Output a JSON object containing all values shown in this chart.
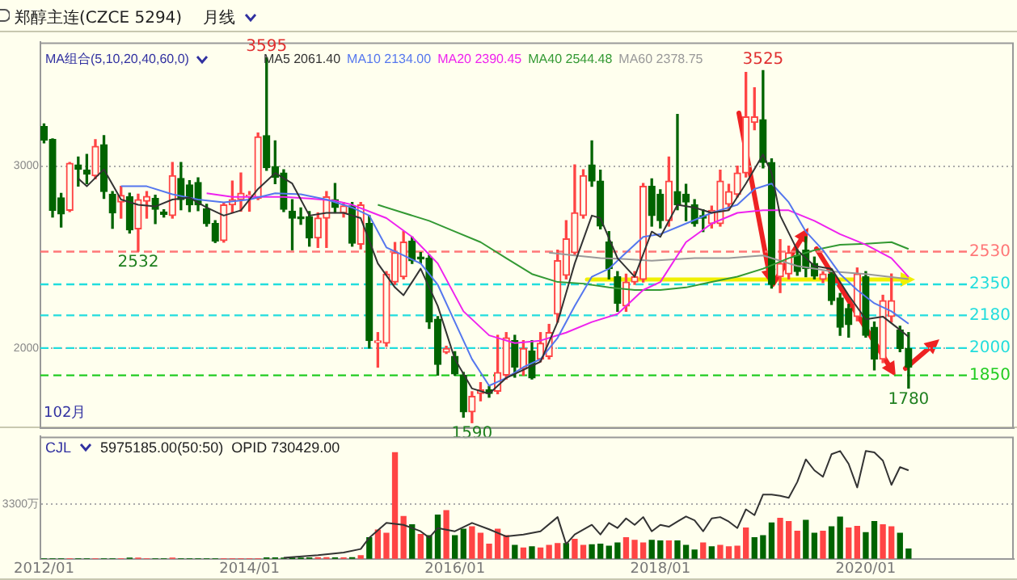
{
  "chart_data": [
    {
      "type": "candlestick",
      "title": "郑醇主连(CZCE 5294)",
      "subtitle": "月线",
      "legend_title": "MA组合(5,10,20,40,60,0)",
      "legend": "top",
      "tick_labels": "y",
      "grid": "y",
      "marker": "none",
      "xlim": [
        "2011-12-19",
        "2021-06-10"
      ],
      "ylim": [
        1560,
        3680
      ],
      "yticks": [
        2000,
        3000
      ],
      "x": [
        "2012-01",
        "2012-02",
        "2012-03",
        "2012-04",
        "2012-05",
        "2012-06",
        "2012-07",
        "2012-08",
        "2012-09",
        "2012-10",
        "2012-11",
        "2012-12",
        "2013-01",
        "2013-02",
        "2013-03",
        "2013-04",
        "2013-05",
        "2013-06",
        "2013-07",
        "2013-08",
        "2013-09",
        "2013-10",
        "2013-11",
        "2013-12",
        "2014-01",
        "2014-02",
        "2014-03",
        "2014-04",
        "2014-05",
        "2014-06",
        "2014-07",
        "2014-08",
        "2014-09",
        "2014-10",
        "2014-11",
        "2014-12",
        "2015-01",
        "2015-02",
        "2015-03",
        "2015-04",
        "2015-05",
        "2015-06",
        "2015-07",
        "2015-08",
        "2015-09",
        "2015-10",
        "2015-11",
        "2015-12",
        "2016-01",
        "2016-02",
        "2016-03",
        "2016-04",
        "2016-05",
        "2016-06",
        "2016-07",
        "2016-08",
        "2016-09",
        "2016-10",
        "2016-11",
        "2016-12",
        "2017-01",
        "2017-02",
        "2017-03",
        "2017-04",
        "2017-05",
        "2017-06",
        "2017-07",
        "2017-08",
        "2017-09",
        "2017-10",
        "2017-11",
        "2017-12",
        "2018-01",
        "2018-02",
        "2018-03",
        "2018-04",
        "2018-05",
        "2018-06",
        "2018-07",
        "2018-08",
        "2018-09",
        "2018-10",
        "2018-11",
        "2018-12",
        "2019-01",
        "2019-02",
        "2019-03",
        "2019-04",
        "2019-05",
        "2019-06",
        "2019-07",
        "2019-08",
        "2019-09",
        "2019-10",
        "2019-11",
        "2019-12",
        "2020-01",
        "2020-02",
        "2020-03",
        "2020-04",
        "2020-05",
        "2020-06"
      ],
      "ohlc": [
        [
          3217,
          3232,
          3128,
          3143
        ],
        [
          3146,
          3150,
          2720,
          2757
        ],
        [
          2825,
          2850,
          2665,
          2737
        ],
        [
          2757,
          3020,
          2750,
          3015
        ],
        [
          3006,
          3050,
          2890,
          2982
        ],
        [
          2977,
          3064,
          2904,
          2956
        ],
        [
          2947,
          3145,
          2930,
          3108
        ],
        [
          3117,
          3167,
          2822,
          2860
        ],
        [
          2845,
          2860,
          2658,
          2743
        ],
        [
          2802,
          2889,
          2714,
          2839
        ],
        [
          2831,
          2851,
          2632,
          2649
        ],
        [
          2655,
          2845,
          2532,
          2816
        ],
        [
          2807,
          2860,
          2714,
          2833
        ],
        [
          2822,
          2840,
          2684,
          2763
        ],
        [
          2748,
          2760,
          2720,
          2735
        ],
        [
          2728,
          3020,
          2714,
          2947
        ],
        [
          2932,
          3020,
          2760,
          2816
        ],
        [
          2897,
          2920,
          2750,
          2787
        ],
        [
          2910,
          2935,
          2755,
          2787
        ],
        [
          2766,
          2790,
          2670,
          2684
        ],
        [
          2684,
          2700,
          2580,
          2588
        ],
        [
          2591,
          2800,
          2582,
          2787
        ],
        [
          2787,
          2918,
          2743,
          2816
        ],
        [
          2816,
          2962,
          2752,
          2851
        ],
        [
          2835,
          2860,
          2752,
          2840
        ],
        [
          2822,
          3182,
          2816,
          3161
        ],
        [
          3167,
          3595,
          2977,
          2991
        ],
        [
          2997,
          3138,
          2904,
          2939
        ],
        [
          2962,
          2980,
          2750,
          2763
        ],
        [
          2752,
          2816,
          2540,
          2714
        ],
        [
          2720,
          2770,
          2680,
          2710
        ],
        [
          2722,
          2750,
          2560,
          2605
        ],
        [
          2605,
          2743,
          2553,
          2714
        ],
        [
          2714,
          2860,
          2553,
          2831
        ],
        [
          2816,
          2904,
          2743,
          2772
        ],
        [
          2743,
          2800,
          2720,
          2781
        ],
        [
          2781,
          2800,
          2560,
          2576
        ],
        [
          2570,
          2800,
          2545,
          2787
        ],
        [
          2684,
          2728,
          2000,
          2041
        ],
        [
          2030,
          2085,
          1895,
          2040
        ],
        [
          2027,
          2420,
          2010,
          2406
        ],
        [
          2363,
          2580,
          2350,
          2524
        ],
        [
          2392,
          2640,
          2380,
          2582
        ],
        [
          2588,
          2610,
          2465,
          2480
        ],
        [
          2500,
          2525,
          2465,
          2490
        ],
        [
          2494,
          2510,
          2108,
          2143
        ],
        [
          2158,
          2173,
          1851,
          1910
        ],
        [
          1977,
          2010,
          1970,
          1998
        ],
        [
          1954,
          1980,
          1851,
          1858
        ],
        [
          1851,
          1866,
          1620,
          1650
        ],
        [
          1650,
          1760,
          1590,
          1735
        ],
        [
          1750,
          1810,
          1710,
          1770
        ],
        [
          1770,
          1790,
          1730,
          1750
        ],
        [
          1763,
          2070,
          1749,
          1866
        ],
        [
          1851,
          2085,
          1830,
          2056
        ],
        [
          2041,
          2070,
          1840,
          1895
        ],
        [
          1886,
          2041,
          1851,
          1998
        ],
        [
          1983,
          2041,
          1830,
          1836
        ],
        [
          1939,
          2085,
          1925,
          2027
        ],
        [
          1954,
          2130,
          1940,
          2085
        ],
        [
          2187,
          2538,
          2143,
          2480
        ],
        [
          2400,
          2700,
          2380,
          2600
        ],
        [
          2524,
          3006,
          2510,
          2743
        ],
        [
          2728,
          2980,
          2714,
          2947
        ],
        [
          3006,
          3138,
          2889,
          2918
        ],
        [
          2918,
          2977,
          2655,
          2670
        ],
        [
          2582,
          2640,
          2380,
          2436
        ],
        [
          2392,
          2420,
          2202,
          2246
        ],
        [
          2231,
          2406,
          2202,
          2363
        ],
        [
          2363,
          2420,
          2350,
          2392
        ],
        [
          2378,
          2904,
          2363,
          2889
        ],
        [
          2889,
          2930,
          2670,
          2728
        ],
        [
          2845,
          2870,
          2660,
          2700
        ],
        [
          2700,
          3050,
          2670,
          2918
        ],
        [
          2860,
          3284,
          2760,
          2787
        ],
        [
          2845,
          2900,
          2700,
          2802
        ],
        [
          2787,
          2816,
          2670,
          2684
        ],
        [
          2728,
          2760,
          2640,
          2714
        ],
        [
          2684,
          2780,
          2660,
          2757
        ],
        [
          2684,
          2977,
          2670,
          2918
        ],
        [
          2790,
          2900,
          2760,
          2860
        ],
        [
          2845,
          3000,
          2830,
          2962
        ],
        [
          2962,
          3515,
          2940,
          3270
        ],
        [
          3240,
          3430,
          3200,
          3270
        ],
        [
          3255,
          3525,
          2990,
          3020
        ],
        [
          3020,
          3040,
          2330,
          2350
        ],
        [
          2392,
          2596,
          2305,
          2465
        ],
        [
          2407,
          2560,
          2380,
          2524
        ],
        [
          2509,
          2540,
          2400,
          2421
        ],
        [
          2538,
          2611,
          2392,
          2436
        ],
        [
          2465,
          2500,
          2380,
          2395
        ],
        [
          2378,
          2420,
          2360,
          2407
        ],
        [
          2407,
          2430,
          2240,
          2261
        ],
        [
          2275,
          2300,
          2070,
          2114
        ],
        [
          2217,
          2240,
          2060,
          2129
        ],
        [
          2173,
          2440,
          2150,
          2407
        ],
        [
          2392,
          2420,
          2060,
          2070
        ],
        [
          2114,
          2143,
          1880,
          1939
        ],
        [
          1939,
          2290,
          1920,
          2261
        ],
        [
          2173,
          2407,
          2143,
          2261
        ],
        [
          2100,
          2120,
          1980,
          1998
        ],
        [
          1998,
          2085,
          1780,
          1895
        ]
      ],
      "series": [
        {
          "name": "MA5 2061.40",
          "type": "line",
          "color": "#333333",
          "x": [
            "2012-05",
            "2012-06",
            "2012-08",
            "2012-10",
            "2012-12",
            "2013-02",
            "2013-04",
            "2013-06",
            "2013-08",
            "2013-10",
            "2013-12",
            "2014-02",
            "2014-04",
            "2014-06",
            "2014-08",
            "2014-10",
            "2014-12",
            "2015-02",
            "2015-04",
            "2015-06",
            "2015-07",
            "2015-09",
            "2015-11",
            "2016-01",
            "2016-03",
            "2016-05",
            "2016-07",
            "2016-09",
            "2016-11",
            "2017-01",
            "2017-03",
            "2017-05",
            "2017-06",
            "2017-08",
            "2017-10",
            "2017-12",
            "2018-01",
            "2018-03",
            "2018-05",
            "2018-07",
            "2018-09",
            "2018-11",
            "2019-01",
            "2019-02",
            "2019-03",
            "2019-05",
            "2019-07",
            "2019-09",
            "2019-11",
            "2020-01",
            "2020-03",
            "2020-05",
            "2020-06"
          ],
          "values": [
            2932,
            2889,
            2982,
            2816,
            2787,
            2778,
            2816,
            2827,
            2772,
            2728,
            2757,
            2874,
            2962,
            2904,
            2728,
            2743,
            2743,
            2714,
            2465,
            2333,
            2290,
            2436,
            2231,
            1939,
            1778,
            1749,
            1836,
            1880,
            1925,
            2143,
            2465,
            2728,
            2714,
            2494,
            2392,
            2640,
            2611,
            2787,
            2772,
            2743,
            2757,
            2904,
            3064,
            2962,
            2728,
            2538,
            2451,
            2436,
            2290,
            2158,
            2173,
            2100,
            2061.4
          ]
        },
        {
          "name": "MA10 2134.00",
          "type": "line",
          "color": "#5577ee",
          "x": [
            "2012-10",
            "2013-01",
            "2013-04",
            "2013-07",
            "2013-10",
            "2014-01",
            "2014-04",
            "2014-07",
            "2014-10",
            "2015-01",
            "2015-03",
            "2015-05",
            "2015-07",
            "2015-09",
            "2015-11",
            "2016-01",
            "2016-03",
            "2016-05",
            "2016-07",
            "2016-09",
            "2016-11",
            "2017-01",
            "2017-03",
            "2017-05",
            "2017-07",
            "2017-09",
            "2017-11",
            "2018-01",
            "2018-04",
            "2018-07",
            "2018-10",
            "2018-12",
            "2019-02",
            "2019-04",
            "2019-06",
            "2019-08",
            "2019-10",
            "2019-12",
            "2020-02",
            "2020-04",
            "2020-06"
          ],
          "values": [
            2889,
            2889,
            2845,
            2816,
            2801,
            2816,
            2851,
            2845,
            2816,
            2772,
            2728,
            2553,
            2509,
            2465,
            2348,
            2143,
            1939,
            1793,
            1836,
            1895,
            1939,
            2056,
            2231,
            2392,
            2436,
            2524,
            2611,
            2626,
            2684,
            2743,
            2787,
            2874,
            2904,
            2801,
            2640,
            2538,
            2407,
            2319,
            2246,
            2202,
            2134
          ]
        },
        {
          "name": "MA20 2390.45",
          "type": "line",
          "color": "#ee22ee",
          "x": [
            "2013-08",
            "2013-11",
            "2014-02",
            "2014-05",
            "2014-08",
            "2014-11",
            "2015-01",
            "2015-05",
            "2015-08",
            "2015-11",
            "2016-02",
            "2016-05",
            "2016-08",
            "2016-11",
            "2017-02",
            "2017-05",
            "2017-08",
            "2017-11",
            "2018-01",
            "2018-04",
            "2018-07",
            "2018-10",
            "2019-01",
            "2019-04",
            "2019-07",
            "2019-10",
            "2020-01",
            "2020-04",
            "2020-06"
          ],
          "values": [
            2851,
            2831,
            2831,
            2831,
            2822,
            2810,
            2787,
            2714,
            2611,
            2465,
            2202,
            2070,
            2027,
            2041,
            2085,
            2143,
            2187,
            2319,
            2363,
            2582,
            2684,
            2743,
            2757,
            2757,
            2699,
            2626,
            2568,
            2494,
            2390.45
          ]
        },
        {
          "name": "MA40 2544.48",
          "type": "line",
          "color": "#339933",
          "x": [
            "2015-04",
            "2015-07",
            "2015-10",
            "2016-01",
            "2016-04",
            "2016-07",
            "2016-10",
            "2017-01",
            "2017-04",
            "2017-07",
            "2017-10",
            "2018-01",
            "2018-04",
            "2018-07",
            "2018-10",
            "2019-01",
            "2019-04",
            "2019-07",
            "2019-10",
            "2020-01",
            "2020-04",
            "2020-06"
          ],
          "values": [
            2787,
            2743,
            2699,
            2640,
            2582,
            2494,
            2407,
            2363,
            2354,
            2333,
            2319,
            2319,
            2333,
            2363,
            2392,
            2436,
            2494,
            2538,
            2568,
            2573,
            2582,
            2544.48
          ]
        },
        {
          "name": "MA60 2378.75",
          "type": "line",
          "color": "#999999",
          "x": [
            "2016-12",
            "2017-03",
            "2017-06",
            "2017-09",
            "2017-12",
            "2018-05",
            "2018-09",
            "2019-01",
            "2019-05",
            "2019-09",
            "2020-01",
            "2020-06"
          ],
          "values": [
            2524,
            2509,
            2494,
            2489,
            2480,
            2494,
            2494,
            2509,
            2451,
            2421,
            2407,
            2378.75
          ]
        }
      ],
      "ref_lines": [
        {
          "axis": "y",
          "value": 2530,
          "label": "2530",
          "color": "#ff7777",
          "line_style": "dashed"
        },
        {
          "axis": "y",
          "value": 2350,
          "label": "2350",
          "color": "#22dddd",
          "line_style": "dashed"
        },
        {
          "axis": "y",
          "value": 2180,
          "label": "2180",
          "color": "#22dddd",
          "line_style": "dashed"
        },
        {
          "axis": "y",
          "value": 2000,
          "label": "2000",
          "color": "#22dddd",
          "line_style": "dashed"
        },
        {
          "axis": "y",
          "value": 1850,
          "label": "1850",
          "color": "#22cc22",
          "line_style": "dashed"
        }
      ],
      "annotations": [
        {
          "text": "3595",
          "x": "2014-03",
          "y": 3595
        },
        {
          "text": "3525",
          "x": "2019-01",
          "y": 3525
        },
        {
          "text": "2532",
          "x": "2012-12",
          "y": 2532
        },
        {
          "text": "1590",
          "x": "2016-03",
          "y": 1590
        },
        {
          "text": "1780",
          "x": "2020-06",
          "y": 1780
        },
        "102月"
      ]
    },
    {
      "type": "bar",
      "legend_title": "CJL",
      "grid": "y",
      "marker": "none",
      "xlim": [
        "2011-12-19",
        "2021-06-10"
      ],
      "ylim": [
        0,
        7370
      ],
      "yticks": [
        {
          "value": 0,
          "label": null
        },
        {
          "value": 3300,
          "label": "3300万"
        }
      ],
      "xticks": [
        {
          "value": "2012-01",
          "label": "2012/01"
        },
        {
          "value": "2014-01",
          "label": "2014/01"
        },
        {
          "value": "2016-01",
          "label": "2016/01"
        },
        {
          "value": "2018-01",
          "label": "2018/01"
        },
        {
          "value": "2020-01",
          "label": "2020/01"
        }
      ],
      "x": [
        "2012-01",
        "2012-02",
        "2012-03",
        "2012-04",
        "2012-05",
        "2012-06",
        "2012-07",
        "2012-08",
        "2012-09",
        "2012-10",
        "2012-11",
        "2012-12",
        "2013-01",
        "2013-02",
        "2013-03",
        "2013-04",
        "2013-05",
        "2013-06",
        "2013-07",
        "2013-08",
        "2013-09",
        "2013-10",
        "2013-11",
        "2013-12",
        "2014-01",
        "2014-02",
        "2014-03",
        "2014-04",
        "2014-05",
        "2014-06",
        "2014-07",
        "2014-08",
        "2014-09",
        "2014-10",
        "2014-11",
        "2014-12",
        "2015-01",
        "2015-02",
        "2015-03",
        "2015-04",
        "2015-05",
        "2015-06",
        "2015-07",
        "2015-08",
        "2015-09",
        "2015-10",
        "2015-11",
        "2015-12",
        "2016-01",
        "2016-02",
        "2016-03",
        "2016-04",
        "2016-05",
        "2016-06",
        "2016-07",
        "2016-08",
        "2016-09",
        "2016-10",
        "2016-11",
        "2016-12",
        "2017-01",
        "2017-02",
        "2017-03",
        "2017-04",
        "2017-05",
        "2017-06",
        "2017-07",
        "2017-08",
        "2017-09",
        "2017-10",
        "2017-11",
        "2017-12",
        "2018-01",
        "2018-02",
        "2018-03",
        "2018-04",
        "2018-05",
        "2018-06",
        "2018-07",
        "2018-08",
        "2018-09",
        "2018-10",
        "2018-11",
        "2018-12",
        "2019-01",
        "2019-02",
        "2019-03",
        "2019-04",
        "2019-05",
        "2019-06",
        "2019-07",
        "2019-08",
        "2019-09",
        "2019-10",
        "2019-11",
        "2019-12",
        "2020-01",
        "2020-02",
        "2020-03",
        "2020-04",
        "2020-05",
        "2020-06"
      ],
      "series": [
        {
          "values": [
            0,
            0,
            0,
            0,
            0,
            0,
            0,
            0,
            0,
            0,
            40,
            40,
            0,
            0,
            0,
            40,
            0,
            0,
            0,
            0,
            0,
            0,
            0,
            0,
            0,
            0,
            60,
            60,
            40,
            30,
            30,
            60,
            80,
            80,
            60,
            60,
            80,
            200,
            1280,
            1746,
            1552,
            6400,
            2560,
            2056,
            1474,
            1397,
            2638,
            2910,
            1397,
            1785,
            1940,
            1552,
            892,
            1785,
            1397,
            815,
            660,
            737,
            660,
            815,
            931,
            931,
            1183,
            815,
            854,
            892,
            776,
            970,
            1280,
            1125,
            970,
            1125,
            1086,
            1086,
            1086,
            815,
            543,
            970,
            737,
            815,
            737,
            776,
            1862,
            1280,
            1397,
            2172,
            2444,
            2250,
            1668,
            2328,
            1552,
            1668,
            1940,
            2522,
            1862,
            1960,
            1590,
            2250,
            2056,
            1940,
            1552,
            597.5
          ],
          "colors": [
            "#006400",
            "#006400",
            "#006400",
            "#ff4444",
            "#006400",
            "#006400",
            "#ff4444",
            "#006400",
            "#006400",
            "#ff4444",
            "#006400",
            "#ff4444",
            "#ff4444",
            "#006400",
            "#006400",
            "#ff4444",
            "#006400",
            "#006400",
            "#006400",
            "#006400",
            "#006400",
            "#ff4444",
            "#ff4444",
            "#ff4444",
            "#ff4444",
            "#ff4444",
            "#006400",
            "#006400",
            "#006400",
            "#006400",
            "#006400",
            "#006400",
            "#ff4444",
            "#ff4444",
            "#006400",
            "#ff4444",
            "#006400",
            "#ff4444",
            "#006400",
            "#ff4444",
            "#ff4444",
            "#ff4444",
            "#ff4444",
            "#006400",
            "#ff4444",
            "#006400",
            "#006400",
            "#ff4444",
            "#006400",
            "#006400",
            "#ff4444",
            "#ff4444",
            "#ff4444",
            "#ff4444",
            "#ff4444",
            "#006400",
            "#ff4444",
            "#006400",
            "#ff4444",
            "#ff4444",
            "#ff4444",
            "#006400",
            "#ff4444",
            "#ff4444",
            "#006400",
            "#006400",
            "#006400",
            "#006400",
            "#ff4444",
            "#ff4444",
            "#ff4444",
            "#006400",
            "#006400",
            "#ff4444",
            "#006400",
            "#006400",
            "#006400",
            "#ff4444",
            "#006400",
            "#ff4444",
            "#ff4444",
            "#ff4444",
            "#ff4444",
            "#006400",
            "#006400",
            "#006400",
            "#ff4444",
            "#ff4444",
            "#ff4444",
            "#006400",
            "#006400",
            "#ff4444",
            "#006400",
            "#006400",
            "#ff4444",
            "#ff4444",
            "#006400",
            "#006400",
            "#ff4444",
            "#ff4444",
            "#006400",
            "#006400"
          ]
        },
        {
          "type": "line",
          "color": "#333333",
          "x": [
            "2014-05",
            "2014-09",
            "2014-12",
            "2015-02",
            "2015-03",
            "2015-05",
            "2015-07",
            "2015-09",
            "2015-10",
            "2015-11",
            "2016-01",
            "2016-03",
            "2016-05",
            "2016-07",
            "2016-09",
            "2016-11",
            "2017-01",
            "2017-02",
            "2017-03",
            "2017-05",
            "2017-06",
            "2017-07",
            "2017-08",
            "2017-09",
            "2017-10",
            "2017-11",
            "2017-12",
            "2018-01",
            "2018-02",
            "2018-03",
            "2018-04",
            "2018-05",
            "2018-06",
            "2018-07",
            "2018-08",
            "2018-09",
            "2018-10",
            "2018-11",
            "2018-12",
            "2019-01",
            "2019-02",
            "2019-03",
            "2019-04",
            "2019-05",
            "2019-06",
            "2019-07",
            "2019-08",
            "2019-09",
            "2019-10",
            "2019-11",
            "2019-12",
            "2020-01",
            "2020-02",
            "2020-03",
            "2020-04",
            "2020-05",
            "2020-06"
          ],
          "values": [
            78,
            233,
            388,
            601,
            1280,
            2172,
            2056,
            1668,
            1280,
            1862,
            1668,
            2172,
            1785,
            1358,
            1474,
            1668,
            2522,
            892,
            1474,
            2056,
            1474,
            2172,
            1862,
            2444,
            2056,
            2522,
            1668,
            2056,
            1940,
            2250,
            2560,
            2328,
            1668,
            2444,
            2522,
            2250,
            1862,
            2988,
            2638,
            3880,
            3880,
            3802,
            3686,
            4637,
            5995,
            5335,
            4947,
            6305,
            6499,
            5723,
            4307,
            6499,
            6421,
            5917,
            4462,
            5529,
            5335
          ]
        }
      ],
      "annotations": [
        "5975185.00(50:50)",
        "OPID 730429.00"
      ]
    }
  ]
}
